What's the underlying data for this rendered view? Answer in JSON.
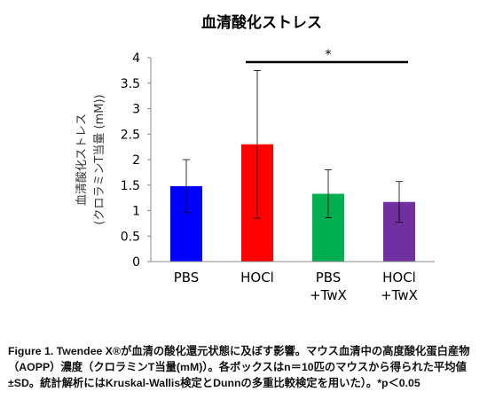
{
  "chart_data": {
    "type": "bar",
    "title": "血清酸化ストレス",
    "ylabel_line1": "血清酸化ストレス",
    "ylabel_line2": "(クロラミンT当量 (mM))",
    "xlabel": "",
    "ylim": [
      0,
      4
    ],
    "yticks": [
      "0",
      "0.5",
      "1",
      "1.5",
      "2",
      "2.5",
      "3",
      "3.5",
      "4"
    ],
    "grid": false,
    "categories": [
      {
        "line1": "PBS",
        "line2": ""
      },
      {
        "line1": "HOCl",
        "line2": ""
      },
      {
        "line1": "PBS",
        "line2": "+TwX"
      },
      {
        "line1": "HOCl",
        "line2": "+TwX"
      }
    ],
    "values": [
      1.48,
      2.3,
      1.33,
      1.17
    ],
    "errors": [
      0.52,
      1.45,
      0.47,
      0.4
    ],
    "colors": [
      "#0000ff",
      "#ff0000",
      "#00b050",
      "#7030a0"
    ],
    "significance": {
      "from": 1,
      "to": 3,
      "label": "*"
    }
  },
  "caption": {
    "text": "Figure 1. Twendee X®が血清の酸化還元状態に及ぼす影響。マウス血清中の高度酸化蛋白産物（AOPP）濃度（クロラミンT当量(mM)）。各ボックスはn＝10匹のマウスから得られた平均値±SD。統計解析にはKruskal-Wallis検定とDunnの多重比較検定を用いた）。*p＜0.05"
  }
}
